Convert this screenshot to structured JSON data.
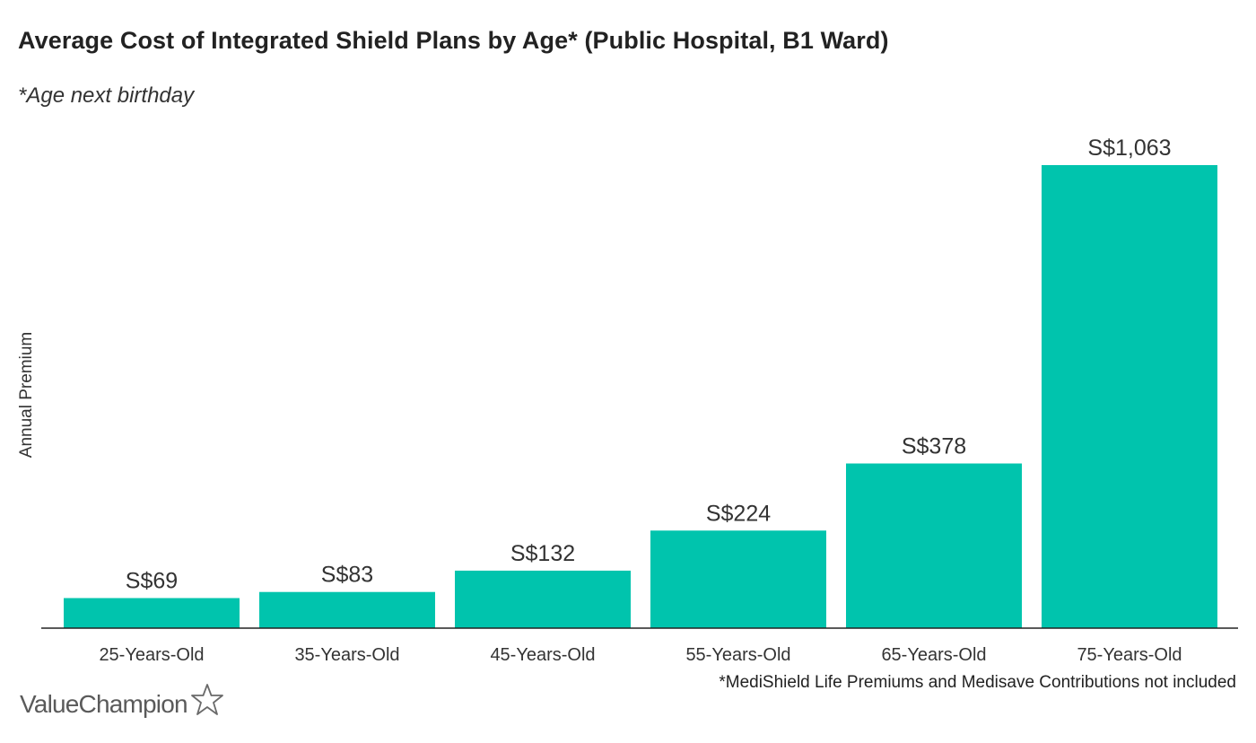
{
  "chart_data": {
    "type": "bar",
    "title": "Average Cost of Integrated Shield Plans by Age* (Public Hospital, B1 Ward)",
    "subtitle": "*Age next birthday",
    "xlabel": "",
    "ylabel": "Annual Premium",
    "categories": [
      "25-Years-Old",
      "35-Years-Old",
      "45-Years-Old",
      "55-Years-Old",
      "65-Years-Old",
      "75-Years-Old"
    ],
    "values": [
      69,
      83,
      132,
      224,
      378,
      1063
    ],
    "data_labels": [
      "S$69",
      "S$83",
      "S$132",
      "S$224",
      "S$378",
      "S$1,063"
    ],
    "ylim": [
      0,
      1063
    ],
    "grid": false,
    "bar_color": "#00c4ad",
    "footnote": "*MediShield Life Premiums and Medisave Contributions not included"
  },
  "branding": {
    "logo_text": "ValueChampion",
    "logo_icon": "star-outline-icon"
  }
}
